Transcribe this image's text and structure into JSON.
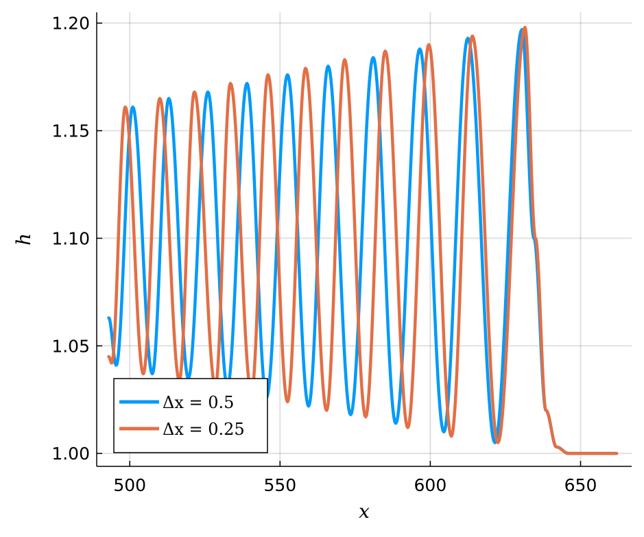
{
  "chart_data": {
    "type": "line",
    "title": "",
    "xlabel": "x",
    "ylabel": "h",
    "xlim": [
      489,
      667
    ],
    "ylim": [
      0.994,
      1.205
    ],
    "grid": true,
    "legend_position": "bottom-left",
    "x_ticks": [
      500,
      550,
      600,
      650
    ],
    "x_tick_labels": [
      "500",
      "550",
      "600",
      "650"
    ],
    "y_ticks": [
      1.0,
      1.05,
      1.1,
      1.15,
      1.2
    ],
    "y_tick_labels": [
      "1.00",
      "1.05",
      "1.10",
      "1.15",
      "1.20"
    ],
    "series": [
      {
        "name": "Δx = 0.5",
        "color": "#009af9",
        "start": [
          493,
          1.063
        ],
        "extrema": [
          [
            495.5,
            1.041
          ],
          [
            501.0,
            1.161
          ],
          [
            507.5,
            1.037
          ],
          [
            513.0,
            1.165
          ],
          [
            519.5,
            1.035
          ],
          [
            526.0,
            1.168
          ],
          [
            532.5,
            1.031
          ],
          [
            539.0,
            1.172
          ],
          [
            545.5,
            1.026
          ],
          [
            552.5,
            1.176
          ],
          [
            559.5,
            1.022
          ],
          [
            566.0,
            1.18
          ],
          [
            573.5,
            1.018
          ],
          [
            581.0,
            1.184
          ],
          [
            588.5,
            1.014
          ],
          [
            596.5,
            1.188
          ],
          [
            604.5,
            1.01
          ],
          [
            612.5,
            1.193
          ],
          [
            621.5,
            1.005
          ],
          [
            630.5,
            1.197
          ]
        ],
        "tail": [
          [
            634.5,
            1.1
          ],
          [
            638.5,
            1.02
          ],
          [
            642,
            1.003
          ],
          [
            646,
            1.0
          ],
          [
            662,
            1.0
          ]
        ]
      },
      {
        "name": "Δx = 0.25",
        "color": "#e26f46",
        "start": [
          493,
          1.045
        ],
        "extrema": [
          [
            494.0,
            1.042
          ],
          [
            498.5,
            1.161
          ],
          [
            504.5,
            1.037
          ],
          [
            510.0,
            1.165
          ],
          [
            516.5,
            1.034
          ],
          [
            521.5,
            1.168
          ],
          [
            528.5,
            1.031
          ],
          [
            533.5,
            1.172
          ],
          [
            540.5,
            1.028
          ],
          [
            546.0,
            1.176
          ],
          [
            552.5,
            1.024
          ],
          [
            558.5,
            1.179
          ],
          [
            565.5,
            1.02
          ],
          [
            571.5,
            1.183
          ],
          [
            578.5,
            1.017
          ],
          [
            585.0,
            1.187
          ],
          [
            592.5,
            1.012
          ],
          [
            599.5,
            1.19
          ],
          [
            607.0,
            1.008
          ],
          [
            614.0,
            1.194
          ],
          [
            622.5,
            1.005
          ],
          [
            631.5,
            1.198
          ]
        ],
        "tail": [
          [
            635,
            1.1
          ],
          [
            638.5,
            1.02
          ],
          [
            642,
            1.003
          ],
          [
            646,
            1.0
          ],
          [
            662,
            1.0
          ]
        ]
      }
    ]
  }
}
